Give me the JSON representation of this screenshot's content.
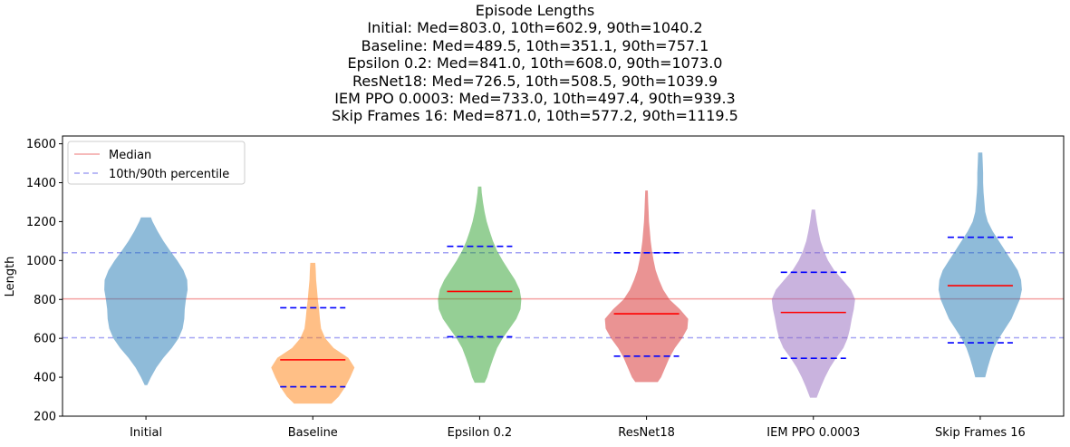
{
  "chart_data": {
    "type": "violin",
    "title": "Episode Lengths",
    "subtitle_lines": [
      "Initial: Med=803.0, 10th=602.9, 90th=1040.2",
      "Baseline: Med=489.5, 10th=351.1, 90th=757.1",
      "Epsilon 0.2: Med=841.0, 10th=608.0, 90th=1073.0",
      "ResNet18: Med=726.5, 10th=508.5, 90th=1039.9",
      "IEM PPO 0.0003: Med=733.0, 10th=497.4, 90th=939.3",
      "Skip Frames 16: Med=871.0, 10th=577.2, 90th=1119.5"
    ],
    "xlabel": "",
    "ylabel": "Length",
    "ylim": [
      200,
      1640
    ],
    "yticks": [
      200,
      400,
      600,
      800,
      1000,
      1200,
      1400,
      1600
    ],
    "grid": false,
    "legend": {
      "placement": "top-left",
      "entries": [
        {
          "label": "Median",
          "style": "solid",
          "color": "#f4a3a3"
        },
        {
          "label": "10th/90th percentile",
          "style": "dashed",
          "color": "#a3a3f4"
        }
      ]
    },
    "reference_lines": {
      "median": 803.0,
      "p10": 602.9,
      "p90": 1040.2
    },
    "series": [
      {
        "name": "Initial",
        "color": "#1f77b4",
        "median": 803.0,
        "p10": 602.9,
        "p90": 1040.2,
        "min": 360,
        "max": 1222,
        "show_markers": false,
        "profile": [
          [
            360,
            0.03
          ],
          [
            400,
            0.12
          ],
          [
            450,
            0.25
          ],
          [
            500,
            0.42
          ],
          [
            550,
            0.62
          ],
          [
            600,
            0.78
          ],
          [
            650,
            0.88
          ],
          [
            700,
            0.92
          ],
          [
            750,
            0.93
          ],
          [
            800,
            0.96
          ],
          [
            850,
            1.0
          ],
          [
            900,
            0.99
          ],
          [
            950,
            0.9
          ],
          [
            1000,
            0.75
          ],
          [
            1050,
            0.58
          ],
          [
            1100,
            0.42
          ],
          [
            1150,
            0.28
          ],
          [
            1200,
            0.16
          ],
          [
            1222,
            0.12
          ]
        ]
      },
      {
        "name": "Baseline",
        "color": "#ff7f0e",
        "median": 489.5,
        "p10": 351.1,
        "p90": 757.1,
        "min": 265,
        "max": 988,
        "show_markers": true,
        "profile": [
          [
            265,
            0.45
          ],
          [
            300,
            0.62
          ],
          [
            350,
            0.78
          ],
          [
            400,
            0.9
          ],
          [
            450,
            1.0
          ],
          [
            500,
            0.85
          ],
          [
            550,
            0.5
          ],
          [
            600,
            0.3
          ],
          [
            650,
            0.2
          ],
          [
            700,
            0.17
          ],
          [
            750,
            0.15
          ],
          [
            800,
            0.12
          ],
          [
            850,
            0.1
          ],
          [
            900,
            0.08
          ],
          [
            950,
            0.07
          ],
          [
            988,
            0.06
          ]
        ]
      },
      {
        "name": "Epsilon 0.2",
        "color": "#2ca02c",
        "median": 841.0,
        "p10": 608.0,
        "p90": 1073.0,
        "min": 372,
        "max": 1380,
        "show_markers": true,
        "profile": [
          [
            372,
            0.12
          ],
          [
            400,
            0.18
          ],
          [
            450,
            0.25
          ],
          [
            500,
            0.33
          ],
          [
            550,
            0.42
          ],
          [
            600,
            0.55
          ],
          [
            650,
            0.72
          ],
          [
            700,
            0.88
          ],
          [
            750,
            0.98
          ],
          [
            800,
            1.0
          ],
          [
            850,
            0.96
          ],
          [
            900,
            0.85
          ],
          [
            950,
            0.7
          ],
          [
            1000,
            0.55
          ],
          [
            1050,
            0.42
          ],
          [
            1100,
            0.32
          ],
          [
            1150,
            0.24
          ],
          [
            1200,
            0.17
          ],
          [
            1250,
            0.12
          ],
          [
            1300,
            0.08
          ],
          [
            1350,
            0.05
          ],
          [
            1380,
            0.04
          ]
        ]
      },
      {
        "name": "ResNet18",
        "color": "#d62728",
        "median": 726.5,
        "p10": 508.5,
        "p90": 1039.9,
        "min": 375,
        "max": 1360,
        "show_markers": true,
        "profile": [
          [
            375,
            0.27
          ],
          [
            400,
            0.35
          ],
          [
            450,
            0.45
          ],
          [
            500,
            0.55
          ],
          [
            550,
            0.68
          ],
          [
            600,
            0.85
          ],
          [
            650,
            0.98
          ],
          [
            700,
            1.0
          ],
          [
            750,
            0.8
          ],
          [
            800,
            0.55
          ],
          [
            850,
            0.4
          ],
          [
            900,
            0.3
          ],
          [
            950,
            0.22
          ],
          [
            1000,
            0.17
          ],
          [
            1050,
            0.13
          ],
          [
            1100,
            0.1
          ],
          [
            1150,
            0.08
          ],
          [
            1200,
            0.06
          ],
          [
            1250,
            0.05
          ],
          [
            1300,
            0.04
          ],
          [
            1360,
            0.03
          ]
        ]
      },
      {
        "name": "IEM PPO 0.0003",
        "color": "#9467bd",
        "median": 733.0,
        "p10": 497.4,
        "p90": 939.3,
        "min": 295,
        "max": 1262,
        "show_markers": true,
        "profile": [
          [
            295,
            0.08
          ],
          [
            350,
            0.18
          ],
          [
            400,
            0.28
          ],
          [
            450,
            0.4
          ],
          [
            500,
            0.55
          ],
          [
            550,
            0.72
          ],
          [
            600,
            0.82
          ],
          [
            650,
            0.88
          ],
          [
            700,
            0.92
          ],
          [
            750,
            0.97
          ],
          [
            800,
            1.0
          ],
          [
            850,
            0.9
          ],
          [
            900,
            0.7
          ],
          [
            950,
            0.5
          ],
          [
            1000,
            0.35
          ],
          [
            1050,
            0.25
          ],
          [
            1100,
            0.17
          ],
          [
            1150,
            0.12
          ],
          [
            1200,
            0.08
          ],
          [
            1262,
            0.04
          ]
        ]
      },
      {
        "name": "Skip Frames 16",
        "color": "#1f77b4",
        "median": 871.0,
        "p10": 577.2,
        "p90": 1119.5,
        "min": 400,
        "max": 1555,
        "show_markers": true,
        "profile": [
          [
            400,
            0.12
          ],
          [
            450,
            0.18
          ],
          [
            500,
            0.25
          ],
          [
            550,
            0.33
          ],
          [
            600,
            0.45
          ],
          [
            650,
            0.6
          ],
          [
            700,
            0.75
          ],
          [
            750,
            0.85
          ],
          [
            800,
            0.95
          ],
          [
            850,
            1.0
          ],
          [
            900,
            0.98
          ],
          [
            950,
            0.9
          ],
          [
            1000,
            0.75
          ],
          [
            1050,
            0.6
          ],
          [
            1100,
            0.45
          ],
          [
            1150,
            0.3
          ],
          [
            1200,
            0.18
          ],
          [
            1250,
            0.12
          ],
          [
            1300,
            0.1
          ],
          [
            1350,
            0.08
          ],
          [
            1400,
            0.07
          ],
          [
            1450,
            0.07
          ],
          [
            1500,
            0.06
          ],
          [
            1555,
            0.05
          ]
        ]
      }
    ]
  }
}
